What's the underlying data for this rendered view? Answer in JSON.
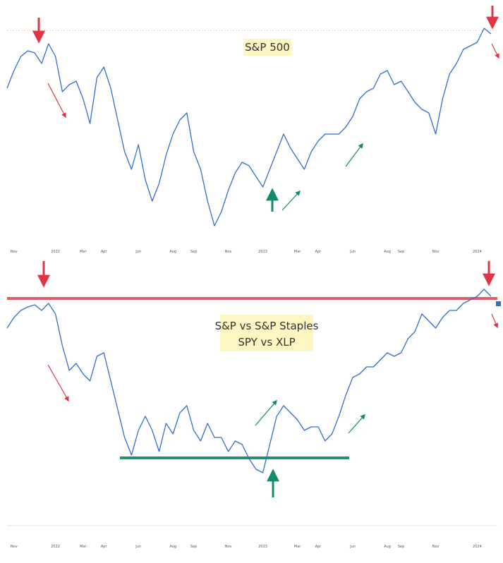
{
  "chart_data": [
    {
      "type": "line",
      "title": "S&P 500",
      "categories": [
        null,
        "Nov",
        null,
        null,
        null,
        null,
        null,
        "2022",
        null,
        null,
        null,
        "Mar",
        null,
        null,
        "Apr",
        null,
        null,
        null,
        null,
        "Jun",
        null,
        null,
        null,
        null,
        "Aug",
        null,
        null,
        "Sep",
        null,
        null,
        null,
        null,
        "Nov",
        null,
        null,
        null,
        null,
        "2023",
        null,
        null,
        null,
        null,
        "Mar",
        null,
        null,
        "Apr",
        null,
        null,
        null,
        null,
        "Jun",
        null,
        null,
        null,
        null,
        "Aug",
        null,
        "Sep",
        null,
        null,
        null,
        null,
        "Nov",
        null,
        null,
        null,
        null,
        null,
        "2024",
        null,
        null
      ],
      "values": [
        215,
        240,
        260,
        268,
        265,
        250,
        278,
        260,
        210,
        220,
        225,
        200,
        165,
        230,
        245,
        215,
        170,
        125,
        100,
        135,
        85,
        55,
        80,
        120,
        150,
        170,
        180,
        125,
        100,
        55,
        20,
        40,
        70,
        95,
        110,
        105,
        90,
        75,
        100,
        125,
        150,
        130,
        115,
        100,
        125,
        140,
        150,
        150,
        150,
        160,
        175,
        200,
        210,
        215,
        235,
        240,
        220,
        225,
        210,
        195,
        185,
        180,
        150,
        200,
        235,
        250,
        270,
        275,
        280,
        300,
        292
      ],
      "color": "#2f6fd0",
      "ylim": [
        0,
        340
      ],
      "hlines": [
        {
          "value": 297,
          "color": "#f5cf9a",
          "style": "dashed"
        }
      ]
    },
    {
      "type": "line",
      "title": "S&P vs S&P Staples",
      "subtitle": "SPY vs XLP",
      "categories": [
        null,
        "Nov",
        null,
        null,
        null,
        null,
        null,
        "2022",
        null,
        null,
        null,
        "Mar",
        null,
        null,
        "Apr",
        null,
        null,
        null,
        null,
        "Jun",
        null,
        null,
        null,
        null,
        "Aug",
        null,
        null,
        "Sep",
        null,
        null,
        null,
        null,
        "Nov",
        null,
        null,
        null,
        null,
        "2023",
        null,
        null,
        null,
        null,
        "Mar",
        null,
        null,
        "Apr",
        null,
        null,
        null,
        null,
        "Jun",
        null,
        null,
        null,
        null,
        "Aug",
        null,
        "Sep",
        null,
        null,
        null,
        null,
        "Nov",
        null,
        null,
        null,
        null,
        null,
        "2024",
        null,
        null
      ],
      "values": [
        295,
        310,
        320,
        325,
        328,
        320,
        330,
        315,
        270,
        235,
        245,
        230,
        220,
        255,
        260,
        220,
        180,
        140,
        115,
        150,
        170,
        150,
        120,
        160,
        145,
        175,
        185,
        150,
        135,
        160,
        140,
        140,
        120,
        135,
        130,
        110,
        95,
        90,
        130,
        170,
        185,
        175,
        165,
        150,
        155,
        155,
        135,
        145,
        170,
        200,
        225,
        230,
        240,
        240,
        250,
        260,
        255,
        260,
        280,
        290,
        315,
        305,
        295,
        310,
        320,
        320,
        330,
        335,
        340,
        350,
        340
      ],
      "color": "#2f6fd0",
      "ylim": [
        0,
        380
      ],
      "hlines": [
        {
          "value": 337,
          "color": "#e05a6a",
          "style": "solid"
        },
        {
          "value": 111,
          "color": "#2e8b7a",
          "style": "solid"
        }
      ]
    }
  ]
}
